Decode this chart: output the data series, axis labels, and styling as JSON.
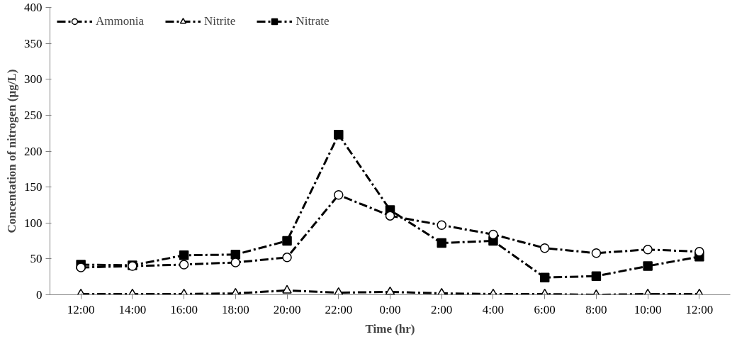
{
  "chart_data": {
    "type": "line",
    "xlabel": "Time (hr)",
    "ylabel": "Concentation of nitrogen (µg/L)",
    "categories": [
      "12:00",
      "14:00",
      "16:00",
      "18:00",
      "20:00",
      "22:00",
      "0:00",
      "2:00",
      "4:00",
      "6:00",
      "8:00",
      "10:00",
      "12:00"
    ],
    "series": [
      {
        "name": "Ammonia",
        "color": "#000000",
        "marker": "circle",
        "values": [
          38,
          40,
          42,
          45,
          52,
          139,
          110,
          97,
          84,
          65,
          58,
          63,
          60
        ]
      },
      {
        "name": "Nitrite",
        "color": "#000000",
        "marker": "triangle",
        "values": [
          1,
          1,
          1,
          2,
          6,
          3,
          4,
          2,
          1,
          1,
          0,
          1,
          1
        ]
      },
      {
        "name": "Nitrate",
        "color": "#000000",
        "marker": "square",
        "values": [
          42,
          41,
          55,
          56,
          75,
          223,
          118,
          72,
          75,
          24,
          26,
          40,
          53
        ]
      }
    ],
    "ylim": [
      0,
      400
    ],
    "yticks": [
      0,
      50,
      100,
      150,
      200,
      250,
      300,
      350,
      400
    ],
    "grid": false,
    "legend": "top left",
    "line_style": "dashed"
  }
}
